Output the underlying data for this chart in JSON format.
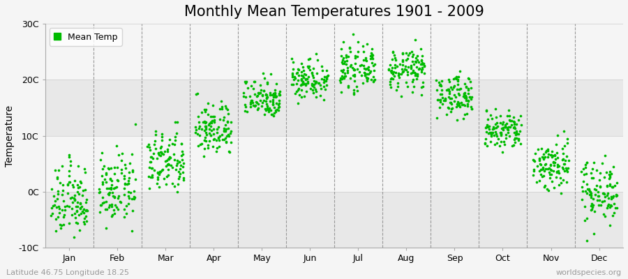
{
  "title": "Monthly Mean Temperatures 1901 - 2009",
  "ylabel": "Temperature",
  "subtitle": "Latitude 46.75 Longitude 18.25",
  "watermark": "worldspecies.org",
  "dot_color": "#00bb00",
  "bg_color": "#f5f5f5",
  "plot_bg_light": "#f5f5f5",
  "plot_bg_dark": "#e8e8e8",
  "legend_label": "Mean Temp",
  "ylim": [
    -10,
    30
  ],
  "yticks": [
    -10,
    0,
    10,
    20,
    30
  ],
  "ytick_labels": [
    "-10C",
    "0C",
    "10C",
    "20C",
    "30C"
  ],
  "months": [
    "Jan",
    "Feb",
    "Mar",
    "Apr",
    "May",
    "Jun",
    "Jul",
    "Aug",
    "Sep",
    "Oct",
    "Nov",
    "Dec"
  ],
  "month_means": [
    -1.8,
    0.3,
    5.2,
    11.2,
    16.8,
    20.2,
    22.0,
    21.8,
    17.2,
    10.8,
    4.8,
    0.2
  ],
  "month_stds": [
    3.2,
    3.0,
    2.8,
    2.4,
    1.8,
    1.8,
    1.8,
    1.8,
    1.8,
    1.8,
    2.4,
    2.8
  ],
  "n_years": 109,
  "dot_size": 7,
  "title_fontsize": 15,
  "axis_fontsize": 10,
  "tick_fontsize": 9,
  "legend_fontsize": 9,
  "subtitle_fontsize": 8,
  "dashed_line_color": "#999999",
  "grid_line_color": "#cccccc",
  "spine_color": "#aaaaaa"
}
